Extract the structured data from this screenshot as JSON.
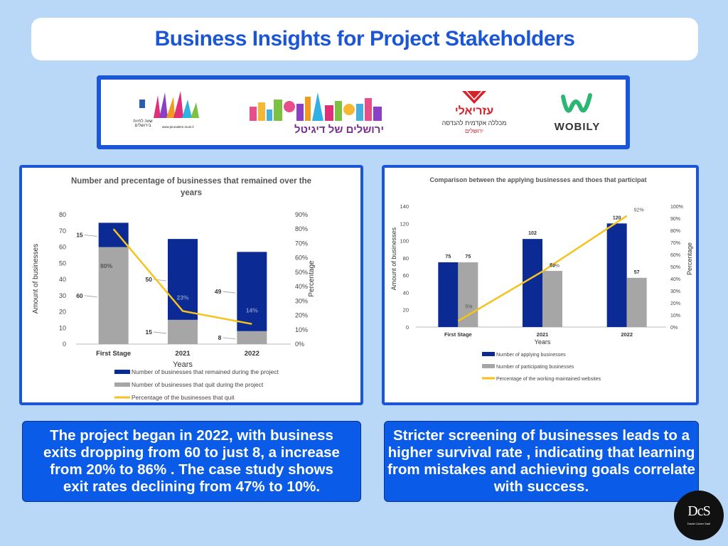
{
  "header": {
    "title": "Business Insights for Project Stakeholders"
  },
  "logos": {
    "jerusalem_muni_text": "שווה לחיות בירושלים",
    "jerusalem_muni_url": "www.jerusalem.muni.il",
    "digital_jerusalem": "ירושלים של דיגיטל",
    "azrieli_name": "עזריאלי",
    "azrieli_sub": "מכללה אקדמית להנדסה",
    "azrieli_city": "ירושלים",
    "wobily": "WOBILY"
  },
  "colors": {
    "navy": "#0b2a94",
    "gray": "#a6a6a6",
    "yellow": "#f6c21c",
    "accent": "#1a56d6"
  },
  "chart_data": [
    {
      "type": "bar",
      "title": "Number and precentage of businesses that remained over the years",
      "xlabel": "Years",
      "ylabel": "Amount of businesses",
      "y2label": "Percentage",
      "categories": [
        "First Stage",
        "2021",
        "2022"
      ],
      "ylim": [
        0,
        80
      ],
      "y2lim": [
        0,
        90
      ],
      "stacked": true,
      "series": [
        {
          "name": "Number of businesses that remained during the project",
          "values": [
            15,
            50,
            49
          ],
          "color": "#0b2a94"
        },
        {
          "name": "Number of businesses that quit during the project",
          "values": [
            60,
            15,
            8
          ],
          "color": "#a6a6a6"
        },
        {
          "name": "Percentage of the businesses that quit",
          "values": [
            80,
            23,
            14
          ],
          "labels": [
            "80%",
            "23%",
            "14%"
          ],
          "axis": "right",
          "type": "line",
          "color": "#f6c21c"
        }
      ],
      "grid": false,
      "legend": "bottom"
    },
    {
      "type": "bar",
      "title": "Comparison between the applying businesses and thoes that participat",
      "xlabel": "Years",
      "ylabel": "Amount of businesses",
      "y2label": "Percentage",
      "categories": [
        "First Stage",
        "2021",
        "2022"
      ],
      "ylim": [
        0,
        140
      ],
      "y2lim": [
        0,
        100
      ],
      "stacked": false,
      "series": [
        {
          "name": "Number of applying businesses",
          "values": [
            75,
            102,
            120
          ],
          "color": "#0b2a94"
        },
        {
          "name": "Number of participating businesses",
          "values": [
            75,
            65,
            57
          ],
          "color": "#a6a6a6"
        },
        {
          "name": "Percentage of the working-maintained websites",
          "values": [
            5,
            46,
            92
          ],
          "labels": [
            "5%",
            "46%",
            "92%"
          ],
          "axis": "right",
          "type": "line",
          "color": "#f6c21c"
        }
      ],
      "grid": false,
      "legend": "bottom"
    }
  ],
  "insights": {
    "left": "The project began in 2022, with business exits dropping from 60 to just 8, a  increase from 20% to 86% . The case study shows exit rates declining from 47% to 10%.",
    "right": "Stricter screening of businesses leads to a higher survival rate , indicating that learning from mistakes and achieving goals correlate with success."
  },
  "badge": {
    "mark": "DcS",
    "sub": "David Cohen Sadi"
  }
}
